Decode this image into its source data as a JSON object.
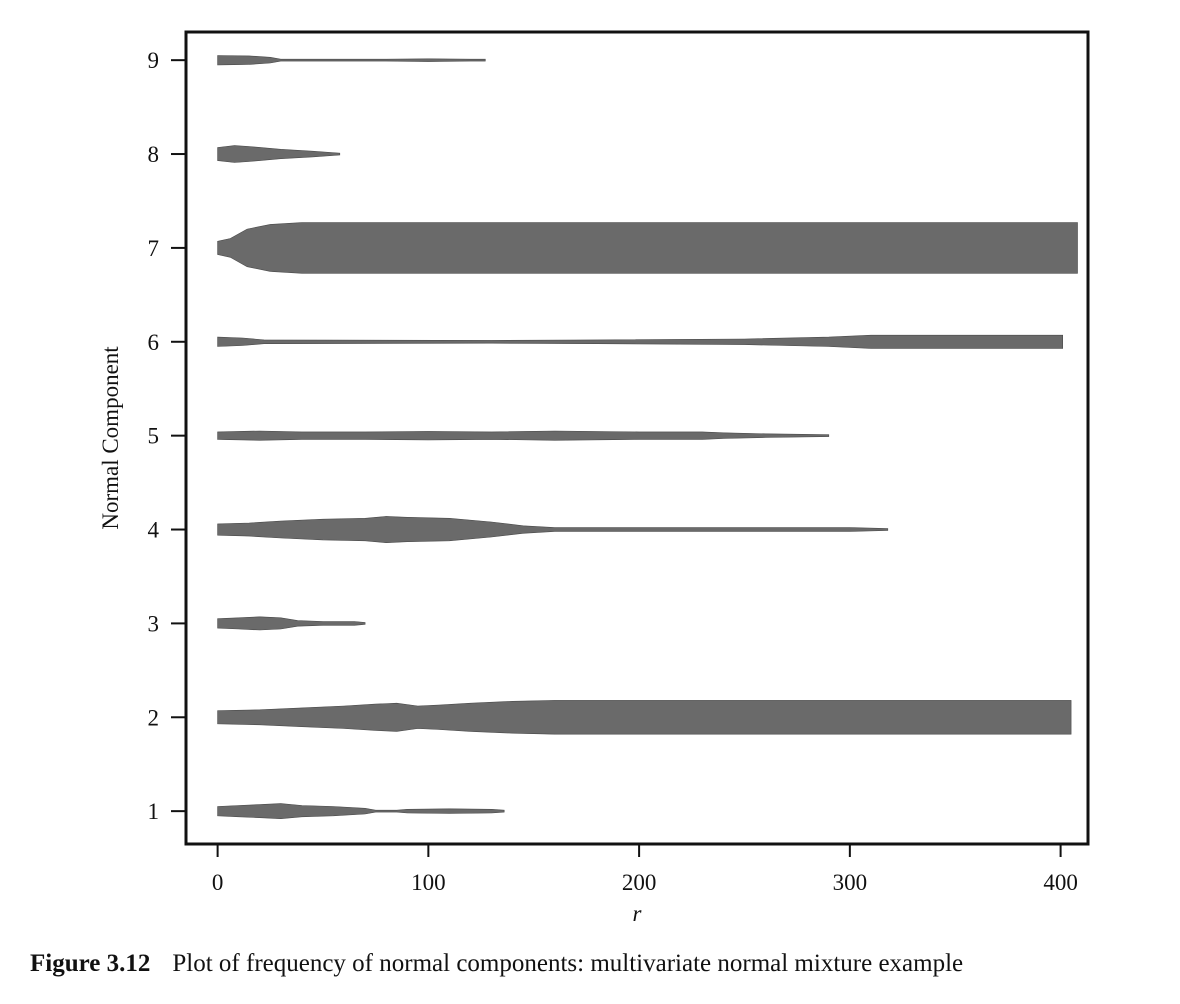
{
  "chart_data": {
    "type": "bar",
    "xlabel": "r",
    "ylabel": "Normal Component",
    "xlim": [
      -15,
      413
    ],
    "ylim": [
      0.65,
      9.3
    ],
    "x_ticks": [
      "0",
      "100",
      "200",
      "300",
      "400"
    ],
    "y_ticks": [
      "1",
      "2",
      "3",
      "4",
      "5",
      "6",
      "7",
      "8",
      "9"
    ],
    "grid": false,
    "legend": "none",
    "color": "#6a6a6a",
    "series": [
      {
        "component": 1,
        "profile": [
          [
            0,
            0.05
          ],
          [
            10,
            0.06
          ],
          [
            20,
            0.07
          ],
          [
            30,
            0.08
          ],
          [
            40,
            0.06
          ],
          [
            55,
            0.05
          ],
          [
            70,
            0.03
          ],
          [
            75,
            0.01
          ],
          [
            85,
            0.01
          ],
          [
            90,
            0.02
          ],
          [
            110,
            0.025
          ],
          [
            130,
            0.02
          ],
          [
            136,
            0.01
          ]
        ]
      },
      {
        "component": 2,
        "profile": [
          [
            0,
            0.07
          ],
          [
            20,
            0.08
          ],
          [
            40,
            0.1
          ],
          [
            60,
            0.12
          ],
          [
            75,
            0.14
          ],
          [
            85,
            0.15
          ],
          [
            95,
            0.12
          ],
          [
            105,
            0.13
          ],
          [
            120,
            0.15
          ],
          [
            140,
            0.17
          ],
          [
            160,
            0.18
          ],
          [
            200,
            0.18
          ],
          [
            300,
            0.18
          ],
          [
            400,
            0.18
          ],
          [
            405,
            0.18
          ]
        ]
      },
      {
        "component": 3,
        "profile": [
          [
            0,
            0.05
          ],
          [
            10,
            0.06
          ],
          [
            20,
            0.07
          ],
          [
            30,
            0.06
          ],
          [
            38,
            0.03
          ],
          [
            50,
            0.02
          ],
          [
            65,
            0.02
          ],
          [
            70,
            0.01
          ]
        ]
      },
      {
        "component": 4,
        "profile": [
          [
            0,
            0.06
          ],
          [
            15,
            0.07
          ],
          [
            30,
            0.09
          ],
          [
            50,
            0.11
          ],
          [
            70,
            0.12
          ],
          [
            80,
            0.14
          ],
          [
            90,
            0.13
          ],
          [
            110,
            0.12
          ],
          [
            130,
            0.08
          ],
          [
            145,
            0.04
          ],
          [
            160,
            0.02
          ],
          [
            250,
            0.02
          ],
          [
            300,
            0.02
          ],
          [
            318,
            0.01
          ]
        ]
      },
      {
        "component": 5,
        "profile": [
          [
            0,
            0.04
          ],
          [
            20,
            0.05
          ],
          [
            40,
            0.04
          ],
          [
            70,
            0.04
          ],
          [
            100,
            0.045
          ],
          [
            130,
            0.04
          ],
          [
            160,
            0.05
          ],
          [
            200,
            0.04
          ],
          [
            230,
            0.04
          ],
          [
            240,
            0.03
          ],
          [
            260,
            0.02
          ],
          [
            290,
            0.01
          ]
        ]
      },
      {
        "component": 6,
        "profile": [
          [
            0,
            0.05
          ],
          [
            12,
            0.04
          ],
          [
            22,
            0.02
          ],
          [
            130,
            0.015
          ],
          [
            180,
            0.02
          ],
          [
            250,
            0.03
          ],
          [
            290,
            0.05
          ],
          [
            310,
            0.07
          ],
          [
            330,
            0.07
          ],
          [
            360,
            0.07
          ],
          [
            401,
            0.07
          ]
        ]
      },
      {
        "component": 7,
        "profile": [
          [
            0,
            0.07
          ],
          [
            6,
            0.1
          ],
          [
            14,
            0.2
          ],
          [
            25,
            0.25
          ],
          [
            40,
            0.27
          ],
          [
            100,
            0.27
          ],
          [
            200,
            0.27
          ],
          [
            300,
            0.27
          ],
          [
            408,
            0.27
          ]
        ]
      },
      {
        "component": 8,
        "profile": [
          [
            0,
            0.07
          ],
          [
            8,
            0.09
          ],
          [
            15,
            0.08
          ],
          [
            30,
            0.05
          ],
          [
            45,
            0.03
          ],
          [
            58,
            0.01
          ]
        ]
      },
      {
        "component": 9,
        "profile": [
          [
            0,
            0.05
          ],
          [
            15,
            0.045
          ],
          [
            25,
            0.03
          ],
          [
            30,
            0.01
          ],
          [
            80,
            0.01
          ],
          [
            100,
            0.015
          ],
          [
            120,
            0.01
          ],
          [
            127,
            0.01
          ]
        ]
      }
    ]
  },
  "caption": {
    "label": "Figure 3.12",
    "text": "Plot of frequency of normal components: multivariate normal mixture example"
  }
}
